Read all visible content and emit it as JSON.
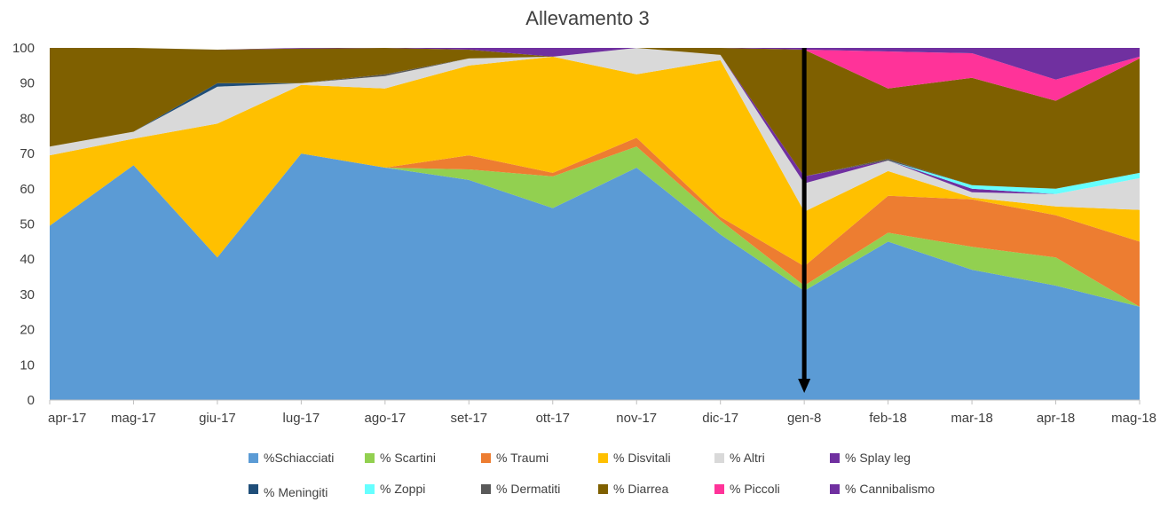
{
  "chart_data": {
    "type": "area",
    "stacked": true,
    "title": "Allevamento 3",
    "xlabel": "",
    "ylabel": "",
    "ylim": [
      0,
      100
    ],
    "yticks": [
      0,
      10,
      20,
      30,
      40,
      50,
      60,
      70,
      80,
      90,
      100
    ],
    "grid": false,
    "legend_position": "bottom",
    "categories": [
      "apr-17",
      "mag-17",
      "giu-17",
      "lug-17",
      "ago-17",
      "set-17",
      "ott-17",
      "nov-17",
      "dic-17",
      "gen-8",
      "feb-18",
      "mar-18",
      "apr-18",
      "mag-18"
    ],
    "annotation": {
      "type": "arrow",
      "category": "gen-8",
      "direction": "down",
      "from_value": 100,
      "to_value": 2,
      "color": "#000000"
    },
    "series": [
      {
        "name": "%Schiacciati",
        "color": "#5B9BD5",
        "values": [
          49.5,
          66.7,
          40.5,
          70,
          66,
          62.5,
          54.5,
          66,
          47,
          31,
          45,
          37,
          32.5,
          26.5
        ]
      },
      {
        "name": "% Scartini",
        "color": "#92D050",
        "values": [
          0,
          0,
          0,
          0,
          0,
          3,
          9,
          6,
          4,
          1.5,
          2.5,
          6.5,
          8,
          0
        ]
      },
      {
        "name": "% Traumi",
        "color": "#ED7D31",
        "values": [
          0,
          0,
          0,
          0,
          0,
          4,
          1,
          2.5,
          1,
          5.5,
          10.5,
          13.5,
          12,
          18.5
        ]
      },
      {
        "name": "% Disvitali",
        "color": "#FFC000",
        "values": [
          20,
          7.5,
          38,
          19.5,
          22.5,
          25.5,
          33,
          18,
          44.5,
          15.5,
          7,
          0.5,
          2.5,
          9
        ]
      },
      {
        "name": "% Altri",
        "color": "#D9D9D9",
        "values": [
          2.5,
          2,
          10.5,
          0.5,
          3.5,
          2,
          0,
          7.5,
          1.5,
          8,
          3,
          1.5,
          3.5,
          9
        ]
      },
      {
        "name": "% Splay leg",
        "color": "#7030A0",
        "values": [
          0,
          0,
          0,
          0,
          0,
          0,
          0,
          0,
          0,
          2,
          0,
          1,
          0,
          0
        ]
      },
      {
        "name": "% Meningiti",
        "color": "#1F4E79",
        "values": [
          0,
          0,
          1,
          0,
          0,
          0,
          0,
          0,
          0,
          0,
          0,
          0,
          0,
          0
        ]
      },
      {
        "name": "% Zoppi",
        "color": "#66FFFF",
        "values": [
          0,
          0,
          0,
          0,
          0,
          0,
          0,
          0,
          0,
          0,
          0,
          1,
          1.5,
          1.5
        ]
      },
      {
        "name": "% Dermatiti",
        "color": "#595959",
        "values": [
          0,
          0,
          0,
          0,
          0.5,
          0,
          0,
          0,
          0,
          0,
          0.5,
          0,
          0,
          0
        ]
      },
      {
        "name": "% Diarrea",
        "color": "#7F6000",
        "values": [
          28,
          23.8,
          9.5,
          9.8,
          7.5,
          2.5,
          0,
          0,
          2,
          36,
          20,
          30.5,
          25,
          32.5
        ]
      },
      {
        "name": "% Piccoli",
        "color": "#FF3399",
        "values": [
          0,
          0,
          0,
          0,
          0,
          0,
          0,
          0,
          0,
          0,
          10.5,
          7,
          6,
          0.5
        ]
      },
      {
        "name": "% Cannibalismo",
        "color": "#7030A0",
        "values": [
          0,
          0,
          0,
          0.2,
          0,
          0.5,
          2.5,
          0,
          0,
          0.5,
          1,
          1.5,
          9,
          2.5
        ]
      }
    ]
  }
}
